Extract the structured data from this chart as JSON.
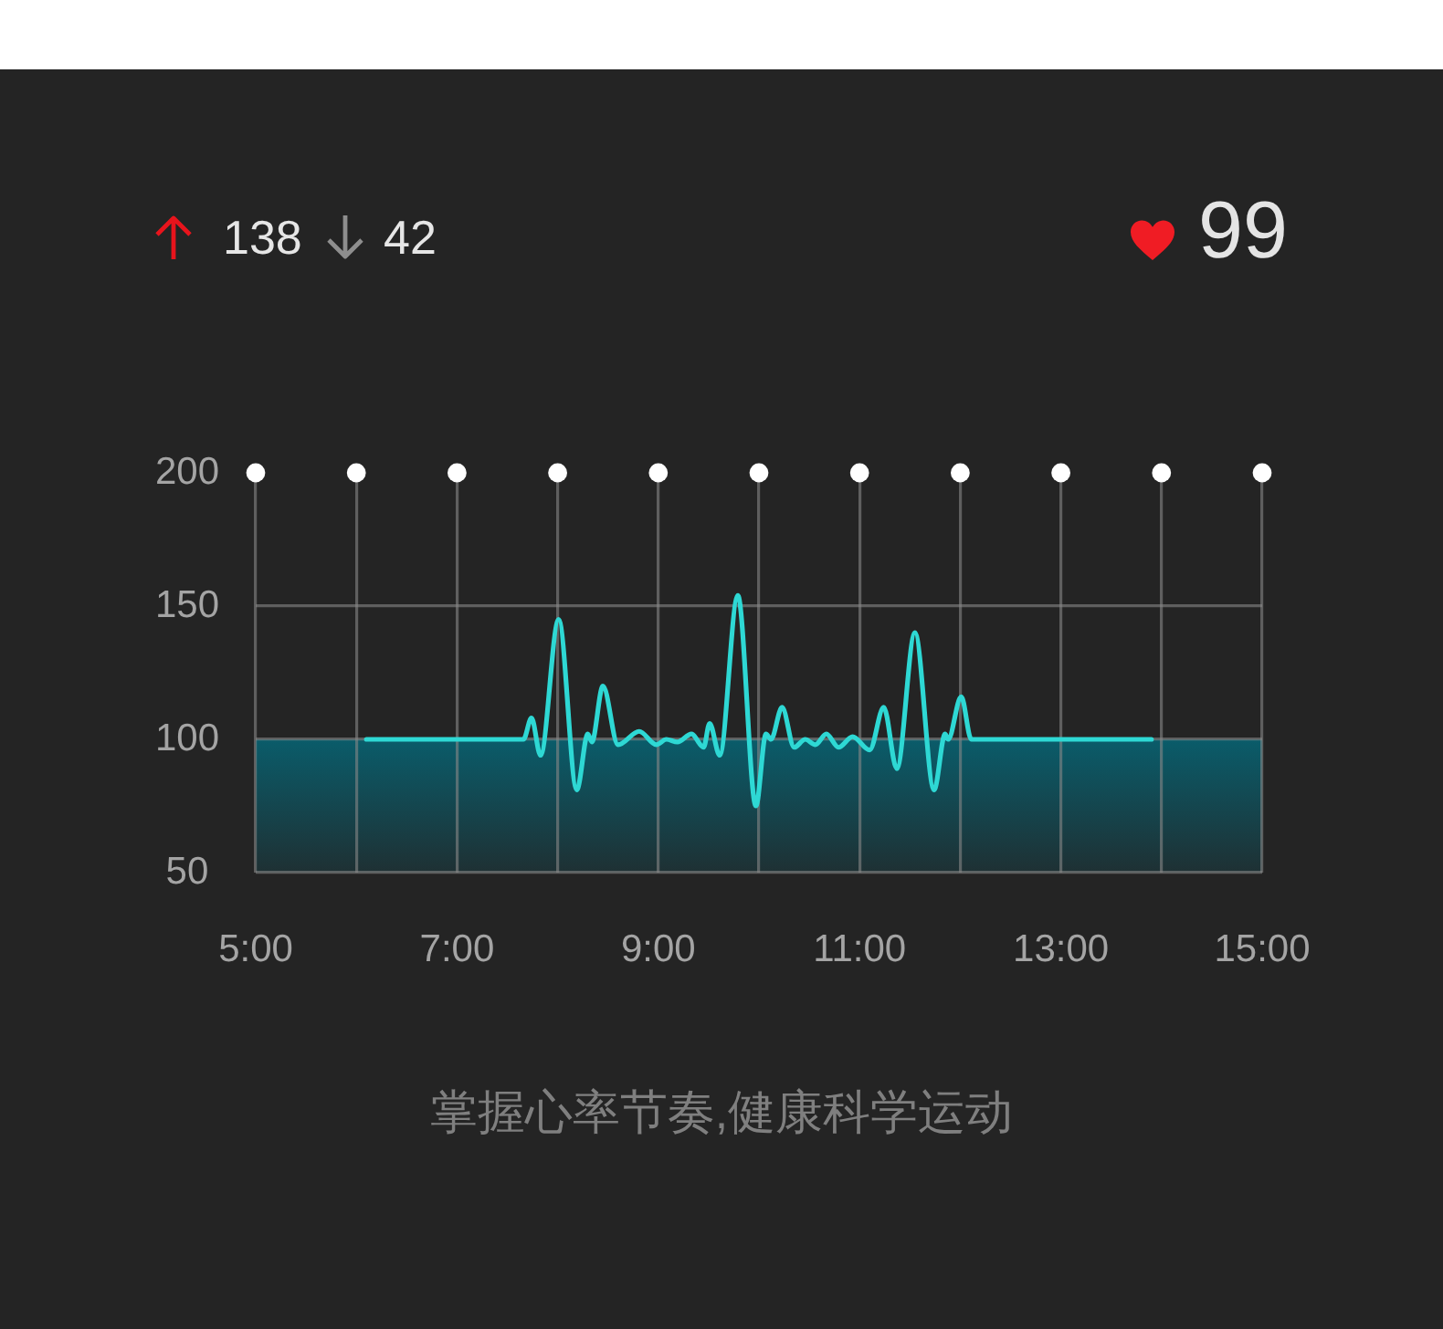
{
  "chart_data": {
    "type": "line",
    "annotations": [
      "138",
      "42",
      "99",
      "掌握心率节奏,健康科学运动"
    ],
    "series": [
      {
        "color": "#2ed8d4",
        "marker": "none",
        "x": [
          6.1,
          7.66,
          7.74,
          7.83,
          8.01,
          8.19,
          8.3,
          8.34,
          8.45,
          8.6,
          8.81,
          8.98,
          9.08,
          9.19,
          9.33,
          9.45,
          9.51,
          9.61,
          9.79,
          9.97,
          10.07,
          10.12,
          10.23,
          10.35,
          10.46,
          10.56,
          10.67,
          10.79,
          10.93,
          11.1,
          11.24,
          11.37,
          11.55,
          11.74,
          11.85,
          11.88,
          12.01,
          12.11,
          13.9
        ],
        "values": [
          100,
          100,
          108,
          94,
          145,
          81,
          102,
          99,
          120,
          98,
          103,
          98,
          100,
          99,
          102,
          97,
          106,
          94,
          154,
          75,
          102,
          100,
          112,
          97,
          100,
          98,
          102,
          97,
          101,
          96,
          112,
          89,
          140,
          81,
          102,
          100,
          116,
          100,
          100
        ]
      },
      {
        "type": "scatter",
        "color": "#ffffff",
        "marker": "circle",
        "x": [
          5,
          6,
          7,
          8,
          9,
          10,
          11,
          12,
          13,
          14,
          15
        ],
        "values": [
          200,
          200,
          200,
          200,
          200,
          200,
          200,
          200,
          200,
          200,
          200
        ]
      }
    ],
    "xlim": [
      5,
      15
    ],
    "xticks": [
      {
        "value": 5,
        "label": "5:00"
      },
      {
        "value": 6,
        "label": null
      },
      {
        "value": 7,
        "label": "7:00"
      },
      {
        "value": 8,
        "label": null
      },
      {
        "value": 9,
        "label": "9:00"
      },
      {
        "value": 10,
        "label": null
      },
      {
        "value": 11,
        "label": "11:00"
      },
      {
        "value": 12,
        "label": null
      },
      {
        "value": 13,
        "label": "13:00"
      },
      {
        "value": 14,
        "label": null
      },
      {
        "value": 15,
        "label": "15:00"
      }
    ],
    "ylim": [
      50,
      200
    ],
    "yticks": [
      50,
      100,
      150,
      200
    ],
    "bands": [
      {
        "axis": "y",
        "from": 50,
        "to": 100,
        "color": "#0a5c6a"
      }
    ],
    "grid": true,
    "legend": false
  }
}
